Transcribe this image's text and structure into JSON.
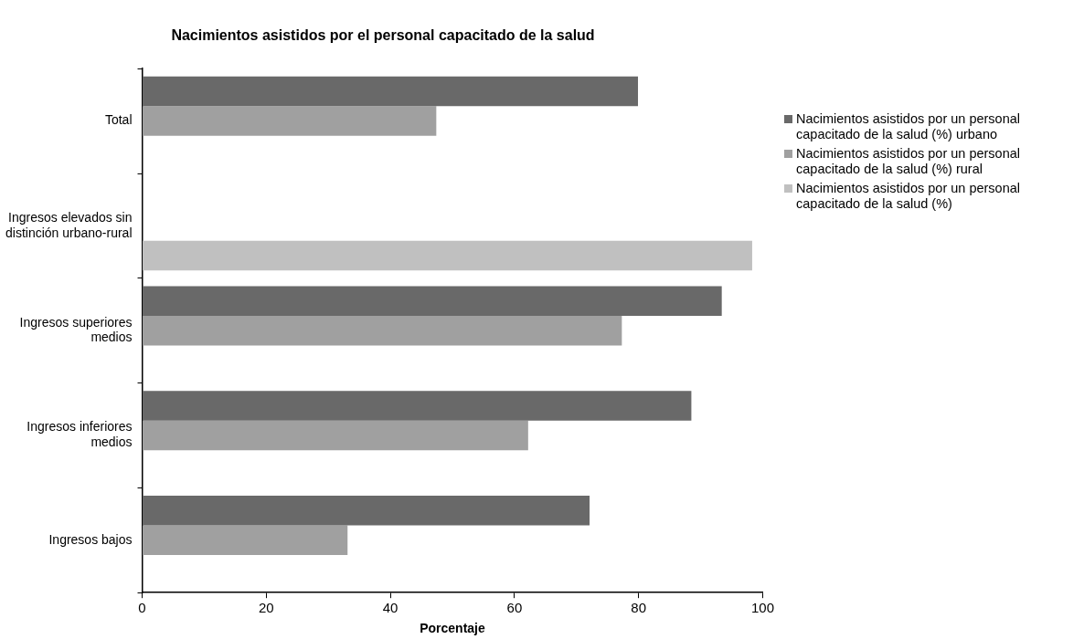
{
  "chart_data": {
    "type": "bar",
    "orientation": "horizontal",
    "title": "Nacimientos asistidos por el personal capacitado de la salud",
    "xlabel": "Porcentaje",
    "categories": [
      "Total",
      "Ingresos elevados sin distinción urbano-rural",
      "Ingresos superiores medios",
      "Ingresos inferiores medios",
      "Ingresos bajos"
    ],
    "series": [
      {
        "name": "Nacimientos asistidos por un personal capacitado de la salud (%) urbano",
        "color": "#696969",
        "values": [
          79.9,
          null,
          93.4,
          88.5,
          72.1
        ]
      },
      {
        "name": "Nacimientos asistidos por un personal capacitado de la salud (%) rural",
        "color": "#a0a0a0",
        "values": [
          47.4,
          null,
          77.3,
          62.2,
          33.1
        ]
      },
      {
        "name": "Nacimientos asistidos por un personal capacitado de la salud (%)",
        "color": "#c0c0c0",
        "values": [
          null,
          98.3,
          null,
          null,
          null
        ]
      }
    ],
    "xlim": [
      0,
      100
    ],
    "xticks": [
      0,
      20,
      40,
      60,
      80,
      100
    ],
    "grid": false,
    "legend": "right"
  }
}
